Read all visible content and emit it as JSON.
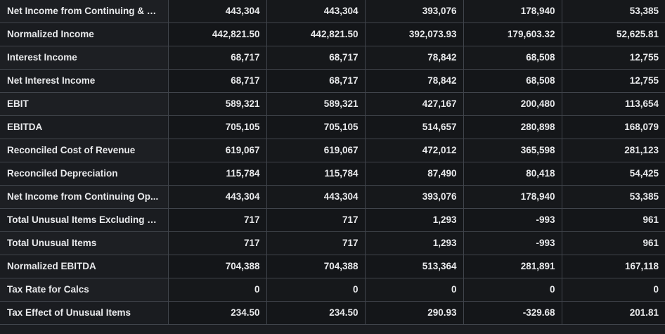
{
  "rows": [
    {
      "label": "Net Income from Continuing & D...",
      "values": [
        "443,304",
        "443,304",
        "393,076",
        "178,940",
        "53,385"
      ]
    },
    {
      "label": "Normalized Income",
      "values": [
        "442,821.50",
        "442,821.50",
        "392,073.93",
        "179,603.32",
        "52,625.81"
      ]
    },
    {
      "label": "Interest Income",
      "values": [
        "68,717",
        "68,717",
        "78,842",
        "68,508",
        "12,755"
      ]
    },
    {
      "label": "Net Interest Income",
      "values": [
        "68,717",
        "68,717",
        "78,842",
        "68,508",
        "12,755"
      ]
    },
    {
      "label": "EBIT",
      "values": [
        "589,321",
        "589,321",
        "427,167",
        "200,480",
        "113,654"
      ]
    },
    {
      "label": "EBITDA",
      "values": [
        "705,105",
        "705,105",
        "514,657",
        "280,898",
        "168,079"
      ]
    },
    {
      "label": "Reconciled Cost of Revenue",
      "values": [
        "619,067",
        "619,067",
        "472,012",
        "365,598",
        "281,123"
      ]
    },
    {
      "label": "Reconciled Depreciation",
      "values": [
        "115,784",
        "115,784",
        "87,490",
        "80,418",
        "54,425"
      ]
    },
    {
      "label": "Net Income from Continuing Op...",
      "values": [
        "443,304",
        "443,304",
        "393,076",
        "178,940",
        "53,385"
      ]
    },
    {
      "label": "Total Unusual Items Excluding G...",
      "values": [
        "717",
        "717",
        "1,293",
        "-993",
        "961"
      ]
    },
    {
      "label": "Total Unusual Items",
      "values": [
        "717",
        "717",
        "1,293",
        "-993",
        "961"
      ]
    },
    {
      "label": "Normalized EBITDA",
      "values": [
        "704,388",
        "704,388",
        "513,364",
        "281,891",
        "167,118"
      ]
    },
    {
      "label": "Tax Rate for Calcs",
      "values": [
        "0",
        "0",
        "0",
        "0",
        "0"
      ]
    },
    {
      "label": "Tax Effect of Unusual Items",
      "values": [
        "234.50",
        "234.50",
        "290.93",
        "-329.68",
        "201.81"
      ]
    }
  ]
}
